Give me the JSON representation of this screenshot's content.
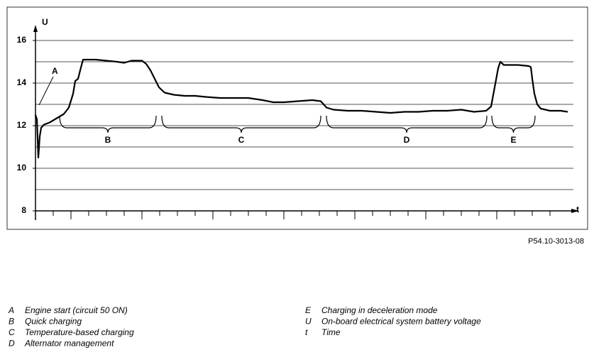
{
  "chart_data": {
    "type": "line",
    "y_label": "U",
    "x_label": "t",
    "reference": "P54.10-3013-08",
    "annotations": [
      {
        "label": "A",
        "x": 5
      },
      {
        "label": "B",
        "x": 102
      },
      {
        "label": "C",
        "x": 290
      },
      {
        "label": "D",
        "x": 523
      },
      {
        "label": "E",
        "x": 674
      }
    ],
    "brackets": [
      {
        "label": "B",
        "from": 34,
        "to": 170
      },
      {
        "label": "C",
        "from": 178,
        "to": 402
      },
      {
        "label": "D",
        "from": 410,
        "to": 636
      },
      {
        "label": "E",
        "from": 643,
        "to": 704
      }
    ],
    "x": [
      0,
      2,
      4,
      6,
      8,
      12,
      20,
      30,
      40,
      47,
      53,
      56,
      60,
      63,
      67,
      75,
      85,
      100,
      115,
      125,
      135,
      150,
      156,
      162,
      168,
      174,
      182,
      195,
      210,
      225,
      240,
      260,
      280,
      300,
      320,
      335,
      350,
      370,
      390,
      402,
      410,
      420,
      440,
      460,
      480,
      500,
      520,
      540,
      560,
      580,
      600,
      618,
      635,
      642,
      647,
      652,
      655,
      660,
      680,
      695,
      698,
      700,
      703,
      707,
      712,
      725,
      740,
      750
    ],
    "series": [
      {
        "name": "U",
        "color": "#000000",
        "values": [
          12.5,
          12.3,
          10.5,
          11.5,
          11.9,
          12.05,
          12.15,
          12.35,
          12.55,
          12.85,
          13.5,
          14.1,
          14.2,
          14.6,
          15.1,
          15.1,
          15.1,
          15.05,
          15.0,
          14.95,
          15.05,
          15.05,
          14.9,
          14.6,
          14.2,
          13.8,
          13.55,
          13.45,
          13.4,
          13.4,
          13.35,
          13.3,
          13.3,
          13.3,
          13.2,
          13.1,
          13.1,
          13.15,
          13.2,
          13.15,
          12.85,
          12.75,
          12.7,
          12.7,
          12.65,
          12.6,
          12.65,
          12.65,
          12.7,
          12.7,
          12.75,
          12.65,
          12.7,
          12.9,
          13.8,
          14.7,
          15.0,
          14.85,
          14.85,
          14.8,
          14.75,
          14.2,
          13.5,
          13.0,
          12.8,
          12.7,
          12.7,
          12.65
        ]
      }
    ],
    "xlim": [
      0,
      760
    ],
    "xticks": [
      0,
      25,
      50,
      75,
      100,
      125,
      150,
      175,
      200,
      225,
      250,
      275,
      300,
      325,
      350,
      375,
      400,
      425,
      450,
      475,
      500,
      525,
      550,
      575,
      600,
      625,
      650,
      675,
      700,
      725
    ],
    "ylim": [
      8,
      16
    ],
    "yticks": [
      8,
      10,
      12,
      14,
      16
    ],
    "grid_lines": [
      8,
      9,
      10,
      11,
      12,
      13,
      14,
      15,
      16
    ],
    "grid": true,
    "key": [
      {
        "letter": "A",
        "text": "Engine start (circuit 50 ON)"
      },
      {
        "letter": "B",
        "text": "Quick charging"
      },
      {
        "letter": "C",
        "text": "Temperature-based charging"
      },
      {
        "letter": "D",
        "text": "Alternator management"
      },
      {
        "letter": "E",
        "text": "Charging in deceleration mode"
      },
      {
        "letter": "U",
        "text": "On-board electrical system battery voltage"
      },
      {
        "letter": "t",
        "text": "Time"
      }
    ]
  }
}
